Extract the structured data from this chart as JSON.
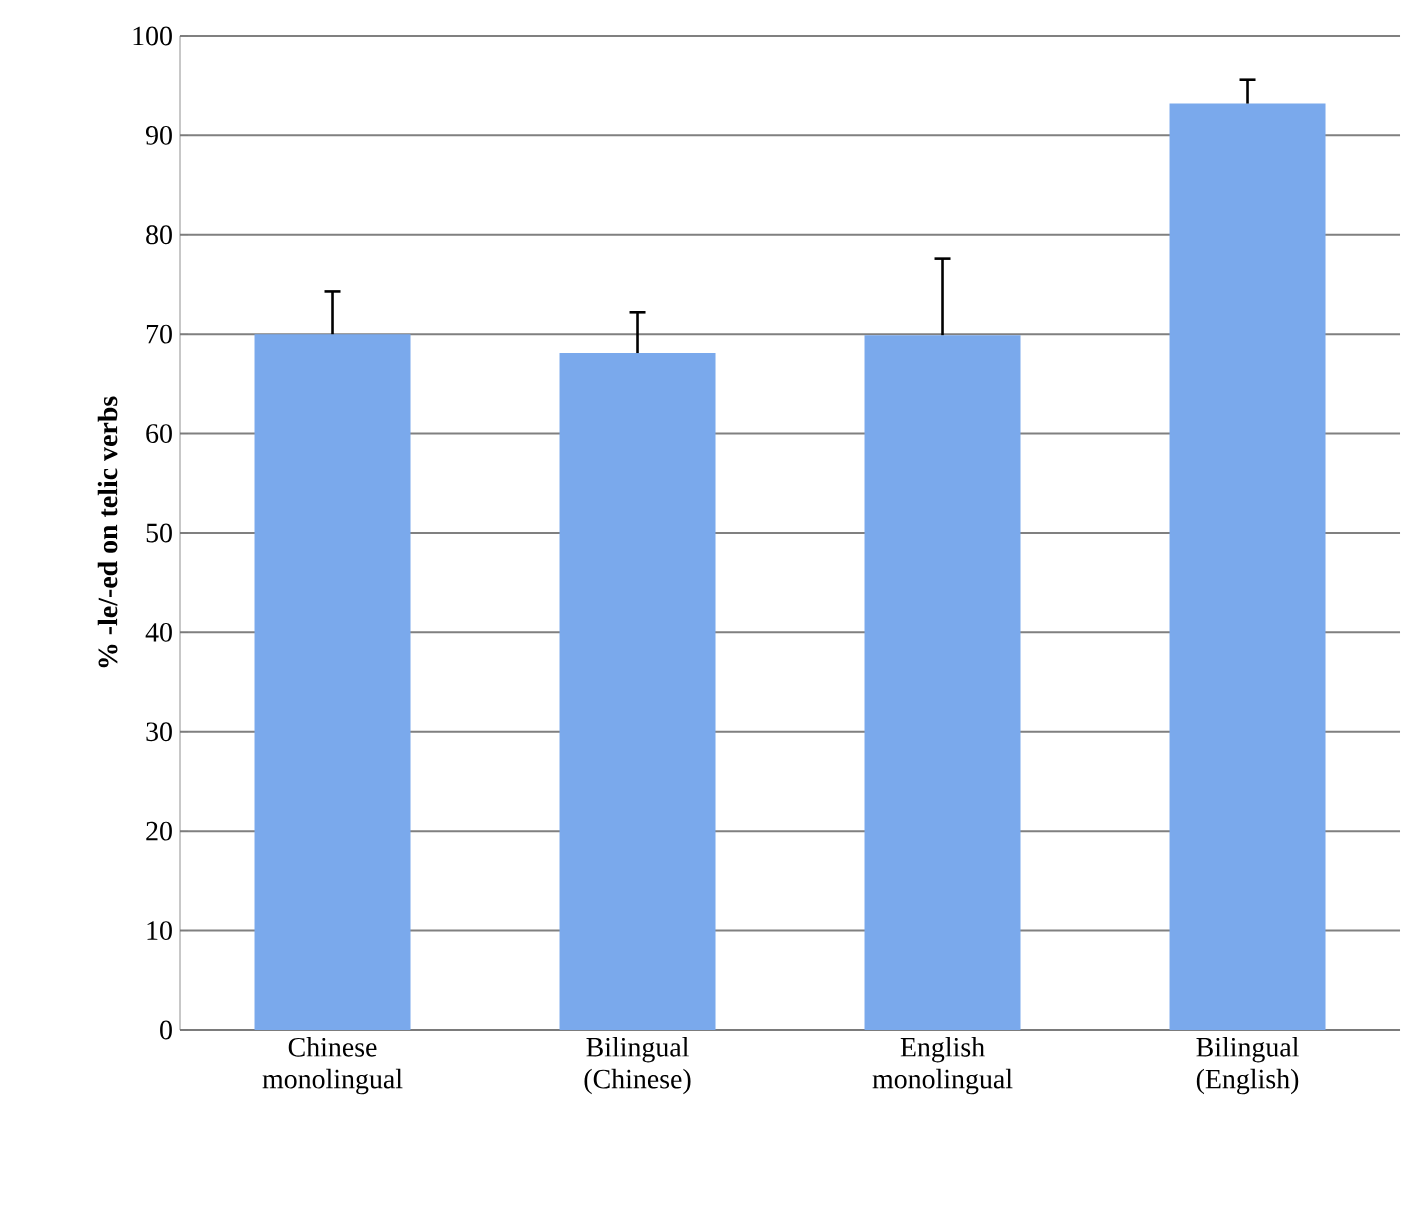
{
  "chart_data": {
    "type": "bar",
    "ylabel": "% -le/-ed on telic verbs",
    "categories": [
      "Chinese monolingual",
      "Bilingual (Chinese)",
      "English monolingual",
      "Bilingual (English)"
    ],
    "values": [
      70,
      68.1,
      69.9,
      93.2
    ],
    "errors": [
      [
        70,
        74.3
      ],
      [
        68.1,
        72.2
      ],
      [
        69.9,
        77.6
      ],
      [
        93.2,
        95.6
      ]
    ],
    "color": "#7aa9ec",
    "ylim": [
      0,
      100
    ],
    "yticks": [
      0,
      10,
      20,
      30,
      40,
      50,
      60,
      70,
      80,
      90,
      100
    ],
    "grid": "y"
  }
}
